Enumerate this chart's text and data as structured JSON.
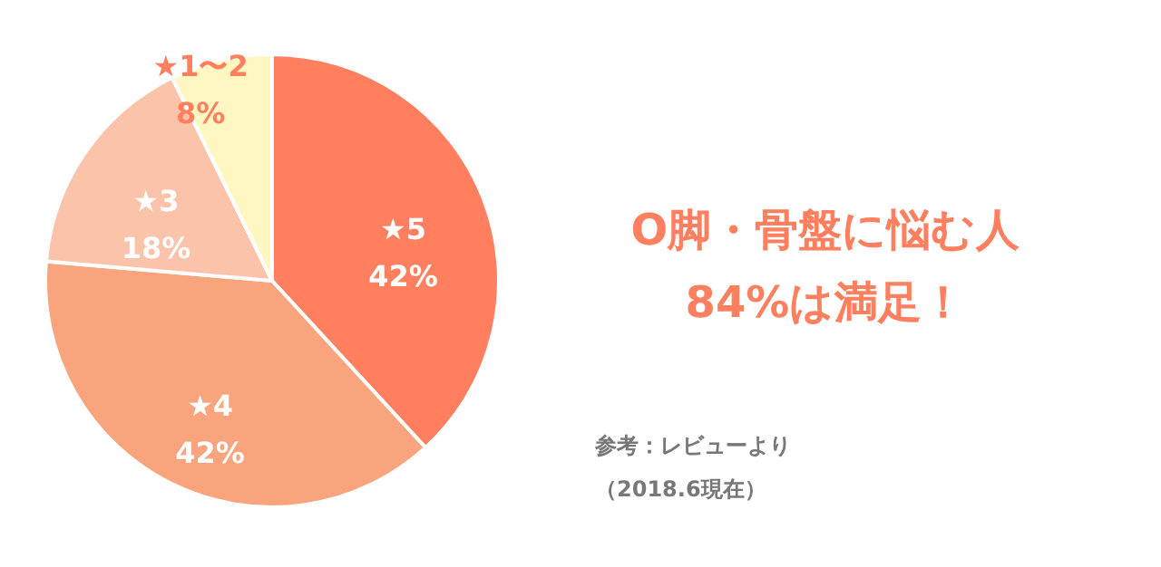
{
  "chart_data": {
    "type": "pie",
    "title": "O脚・骨盤に悩む人",
    "subtitle": "84%は満足！",
    "categories": [
      "★5",
      "★4",
      "★3",
      "★1〜2"
    ],
    "values": [
      42,
      42,
      18,
      8
    ],
    "colors": [
      "#ff7f5f",
      "#f9a47d",
      "#fbc3aa",
      "#fff7c2"
    ],
    "value_labels": [
      "42%",
      "42%",
      "18%",
      "8%"
    ],
    "annotations": [
      "参考：レビューより",
      "（2018.6現在）"
    ]
  }
}
